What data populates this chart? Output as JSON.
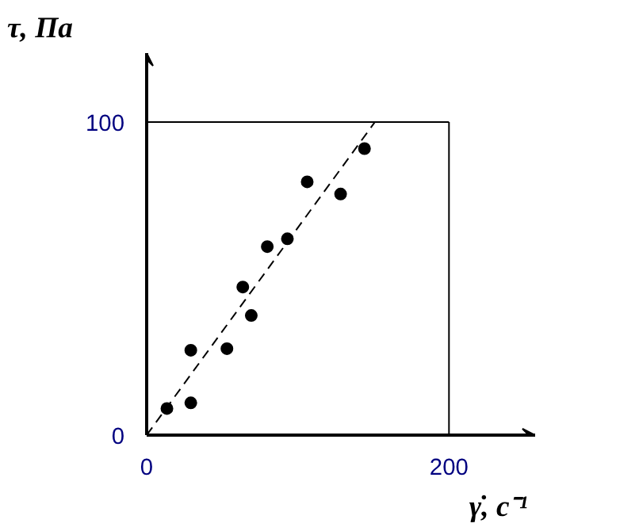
{
  "chart_data": {
    "type": "scatter",
    "xlabel": "γ̇,  с⁻¹",
    "ylabel": "τ,   Па",
    "xlim": [
      0,
      257
    ],
    "ylim": [
      0,
      122
    ],
    "xticks": [
      0,
      200
    ],
    "yticks": [
      0,
      100
    ],
    "grid": false,
    "marker": "circle",
    "series": [
      {
        "color": "#000000",
        "x": [
          13.4,
          29.2,
          29.2,
          53.1,
          69.2,
          63.6,
          79.8,
          93.1,
          106.2,
          128.3,
          144.1
        ],
        "values": [
          8.5,
          10.3,
          27.1,
          27.6,
          38.2,
          47.3,
          60.2,
          62.7,
          80.9,
          77.0,
          91.5
        ]
      },
      {
        "type": "line",
        "line_style": "dashed",
        "marker": "none",
        "color": "#000000",
        "x": [
          0,
          151
        ],
        "values": [
          0,
          100
        ]
      }
    ],
    "ref_lines": [
      {
        "axis": "y",
        "value": 100,
        "color": "#000000"
      },
      {
        "axis": "x",
        "value": 200,
        "color": "#000000"
      }
    ]
  }
}
